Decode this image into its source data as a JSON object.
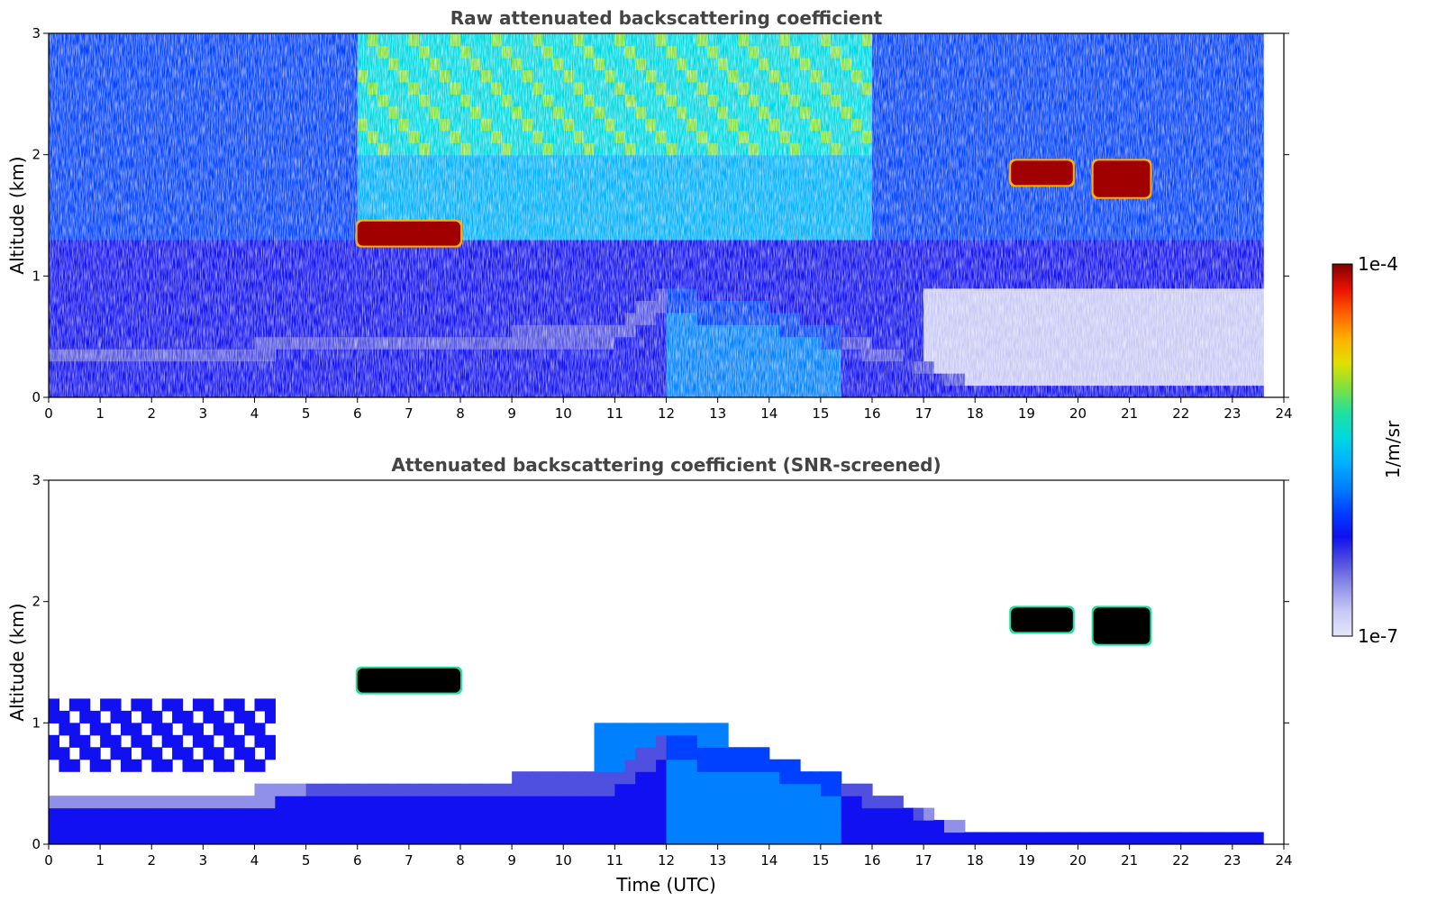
{
  "chart_data": [
    {
      "type": "heatmap",
      "title": "Raw attenuated backscattering coefficient",
      "xlabel": "",
      "ylabel": "Altitude (km)",
      "xlim": [
        0,
        24
      ],
      "ylim": [
        0,
        3
      ],
      "xticks": [
        "0",
        "1",
        "2",
        "3",
        "4",
        "5",
        "6",
        "7",
        "8",
        "9",
        "10",
        "11",
        "12",
        "13",
        "14",
        "15",
        "16",
        "17",
        "18",
        "19",
        "20",
        "21",
        "22",
        "23",
        "24"
      ],
      "yticks": [
        "0",
        "1",
        "2",
        "3"
      ],
      "data_end_hour": 23.6,
      "screened": false
    },
    {
      "type": "heatmap",
      "title": "Attenuated backscattering coefficient (SNR-screened)",
      "xlabel": "Time (UTC)",
      "ylabel": "Altitude (km)",
      "xlim": [
        0,
        24
      ],
      "ylim": [
        0,
        3
      ],
      "xticks": [
        "0",
        "1",
        "2",
        "3",
        "4",
        "5",
        "6",
        "7",
        "8",
        "9",
        "10",
        "11",
        "12",
        "13",
        "14",
        "15",
        "16",
        "17",
        "18",
        "19",
        "20",
        "21",
        "22",
        "23",
        "24"
      ],
      "yticks": [
        "0",
        "1",
        "2",
        "3"
      ],
      "data_end_hour": 23.6,
      "screened": true
    }
  ],
  "colorbar": {
    "label": "1/m/sr",
    "max_label": "1e-4",
    "min_label": "1e-7",
    "colors": [
      "#e6e6fa",
      "#c8c8f5",
      "#9090e8",
      "#5050e0",
      "#1010f0",
      "#0040ff",
      "#0080ff",
      "#00b0ff",
      "#00d8e0",
      "#20e0a0",
      "#80e040",
      "#e0e000",
      "#ffb000",
      "#ff6000",
      "#e81000",
      "#800000"
    ]
  },
  "features": {
    "clouds": [
      {
        "t0": 6.0,
        "t1": 8.0,
        "z0": 1.25,
        "z1": 1.45
      },
      {
        "t0": 18.7,
        "t1": 19.9,
        "z0": 1.75,
        "z1": 1.95
      },
      {
        "t0": 20.3,
        "t1": 21.4,
        "z0": 1.65,
        "z1": 1.95
      }
    ],
    "boundary_layer": [
      {
        "t": 0,
        "z": 0.35
      },
      {
        "t": 4,
        "z": 0.45
      },
      {
        "t": 6,
        "z": 0.55
      },
      {
        "t": 9,
        "z": 0.55
      },
      {
        "t": 11,
        "z": 0.6
      },
      {
        "t": 12,
        "z": 0.95
      },
      {
        "t": 13,
        "z": 0.8
      },
      {
        "t": 14,
        "z": 0.75
      },
      {
        "t": 16,
        "z": 0.45
      },
      {
        "t": 17,
        "z": 0.3
      },
      {
        "t": 18,
        "z": 0.1
      },
      {
        "t": 23.6,
        "z": 0.1
      }
    ]
  }
}
